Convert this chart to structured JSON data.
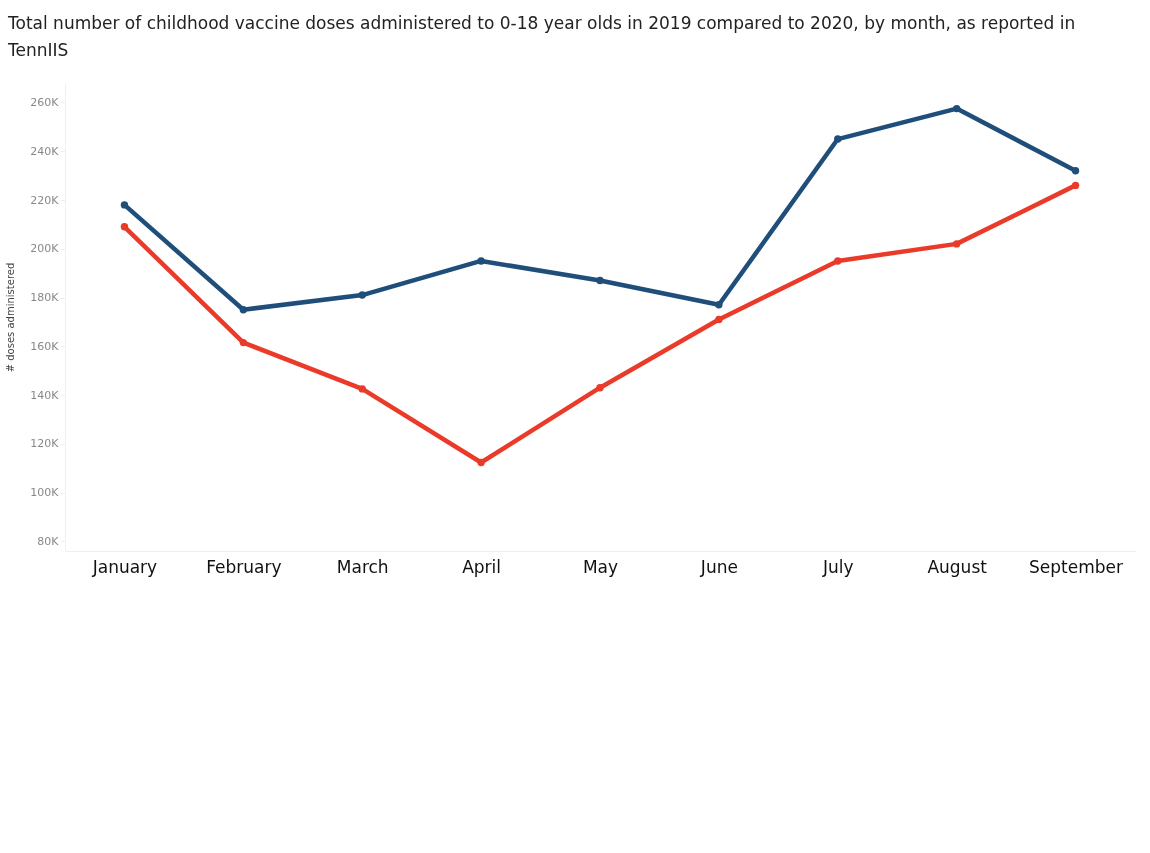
{
  "chart_data": {
    "type": "line",
    "title": "Total number of childhood vaccine doses administered to 0-18 year olds in 2019 compared to 2020, by month, as reported in TennIIS",
    "ylabel": "# doses administered",
    "categories": [
      "January",
      "February",
      "March",
      "April",
      "May",
      "June",
      "July",
      "August",
      "September"
    ],
    "series": [
      {
        "color": "#1f4e7a",
        "values": [
          218000,
          175000,
          181000,
          195000,
          187000,
          177000,
          245000,
          257500,
          232000
        ]
      },
      {
        "color": "#ea3a29",
        "values": [
          209000,
          161500,
          142500,
          112300,
          143000,
          171000,
          195000,
          202000,
          226000
        ]
      }
    ],
    "ylim": [
      76000,
      268000
    ],
    "yticks": [
      {
        "value": 80000,
        "label": "80K"
      },
      {
        "value": 100000,
        "label": "100K"
      },
      {
        "value": 120000,
        "label": "120K"
      },
      {
        "value": 140000,
        "label": "140K"
      },
      {
        "value": 160000,
        "label": "160K"
      },
      {
        "value": 180000,
        "label": "180K"
      },
      {
        "value": 200000,
        "label": "200K"
      },
      {
        "value": 220000,
        "label": "220K"
      },
      {
        "value": 240000,
        "label": "240K"
      },
      {
        "value": 260000,
        "label": "260K"
      }
    ],
    "marker": "circle",
    "grid": false
  }
}
